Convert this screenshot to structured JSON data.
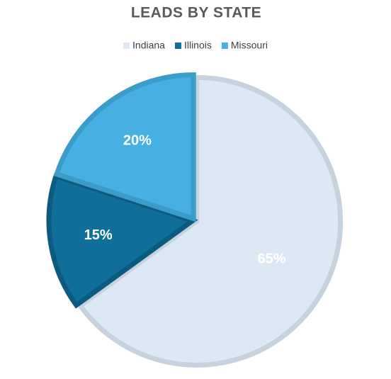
{
  "chart_data": {
    "type": "pie",
    "title": "LEADS BY STATE",
    "categories": [
      "Indiana",
      "Illinois",
      "Missouri"
    ],
    "values": [
      65,
      15,
      20
    ],
    "value_labels": [
      "65%",
      "15%",
      "20%"
    ],
    "colors": [
      "#dce9f5",
      "#0f6f9a",
      "#45b0e1"
    ],
    "border_colors": [
      "#c6d2de",
      "#0b5b80",
      "#3b9cca"
    ],
    "legend": "top"
  }
}
